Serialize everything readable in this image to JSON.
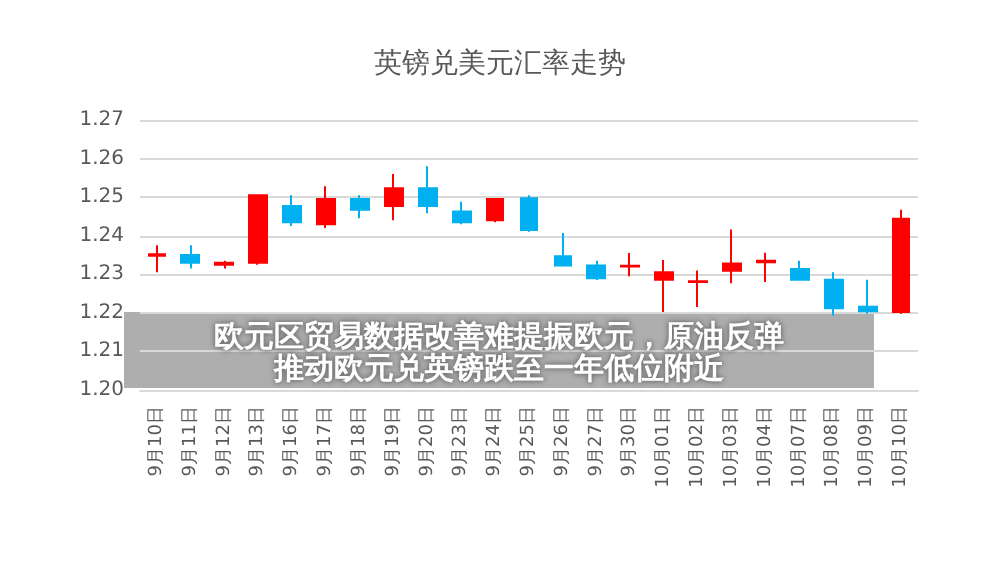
{
  "chart_data": {
    "type": "candlestick",
    "title": "英镑兑美元汇率走势",
    "annotations": [
      "欧元区贸易数据改善难提振欧元，原油反弹推动欧元兑英镑跌至一年低位附近"
    ],
    "categories": [
      "9月10日",
      "9月11日",
      "9月12日",
      "9月13日",
      "9月16日",
      "9月17日",
      "9月18日",
      "9月19日",
      "9月20日",
      "9月23日",
      "9月24日",
      "9月25日",
      "9月26日",
      "9月27日",
      "9月30日",
      "10月01日",
      "10月02日",
      "10月03日",
      "10月04日",
      "10月07日",
      "10月08日",
      "10月09日",
      "10月10日"
    ],
    "ohlc": [
      [
        1.2348,
        1.2375,
        1.2305,
        1.2352
      ],
      [
        1.235,
        1.2375,
        1.2315,
        1.233
      ],
      [
        1.2325,
        1.2335,
        1.2315,
        1.233
      ],
      [
        1.233,
        1.2505,
        1.2325,
        1.2505
      ],
      [
        1.2477,
        1.2505,
        1.2425,
        1.2435
      ],
      [
        1.243,
        1.2528,
        1.242,
        1.2495
      ],
      [
        1.2495,
        1.2505,
        1.2445,
        1.2467
      ],
      [
        1.2477,
        1.256,
        1.244,
        1.2523
      ],
      [
        1.2523,
        1.258,
        1.2458,
        1.2477
      ],
      [
        1.2463,
        1.2488,
        1.243,
        1.2435
      ],
      [
        1.244,
        1.2497,
        1.2435,
        1.2495
      ],
      [
        1.2497,
        1.2505,
        1.241,
        1.2415
      ],
      [
        1.2347,
        1.2407,
        1.232,
        1.2323
      ],
      [
        1.2323,
        1.2335,
        1.2285,
        1.229
      ],
      [
        1.232,
        1.2355,
        1.2295,
        1.2322
      ],
      [
        1.2286,
        1.2337,
        1.2202,
        1.2305
      ],
      [
        1.228,
        1.231,
        1.2215,
        1.2282
      ],
      [
        1.2309,
        1.2416,
        1.2277,
        1.2328
      ],
      [
        1.2331,
        1.2356,
        1.228,
        1.2335
      ],
      [
        1.2314,
        1.2335,
        1.2285,
        1.2286
      ],
      [
        1.2286,
        1.2305,
        1.2193,
        1.2212
      ],
      [
        1.2216,
        1.2286,
        1.2198,
        1.2204
      ],
      [
        1.2202,
        1.2467,
        1.2198,
        1.2444
      ]
    ],
    "colors": [
      "#ff0000",
      "#00b0f0",
      "#ff0000",
      "#ff0000",
      "#00b0f0",
      "#ff0000",
      "#00b0f0",
      "#ff0000",
      "#00b0f0",
      "#00b0f0",
      "#ff0000",
      "#00b0f0",
      "#00b0f0",
      "#00b0f0",
      "#ff0000",
      "#ff0000",
      "#ff0000",
      "#ff0000",
      "#ff0000",
      "#00b0f0",
      "#00b0f0",
      "#00b0f0",
      "#ff0000"
    ],
    "ylim": [
      1.2,
      1.27
    ],
    "yticks": [
      {
        "value": 1.2,
        "label": "1.20"
      },
      1.21,
      1.22,
      1.23,
      1.24,
      1.25,
      1.26,
      1.27
    ],
    "grid": "y"
  }
}
